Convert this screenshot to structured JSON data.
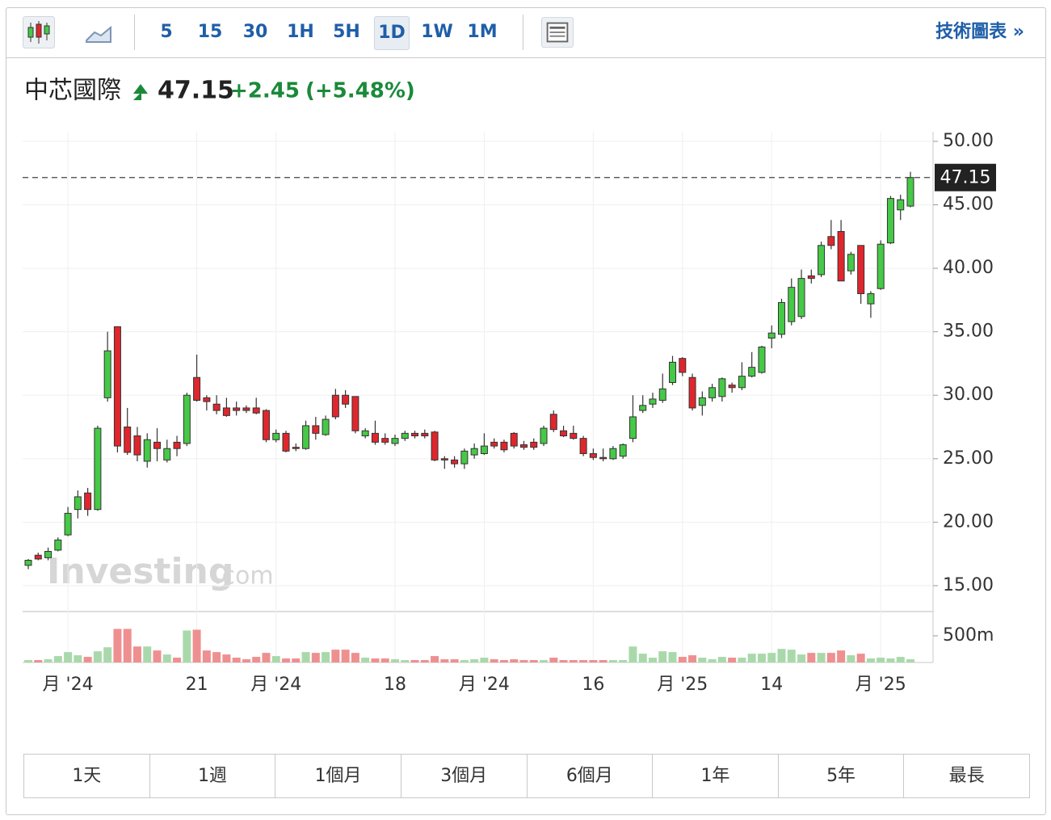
{
  "toolbar": {
    "intervals": [
      "5",
      "15",
      "30",
      "1H",
      "5H",
      "1D",
      "1W",
      "1M"
    ],
    "link": "技術圖表 »"
  },
  "chart_data": {
    "type": "candlestick",
    "title": "中芯國際",
    "last": 47.15,
    "change": {
      "value": 2.45,
      "label": "+2.45"
    },
    "change_percent": {
      "value": 5.48,
      "label": "(+5.48%)"
    },
    "watermark": [
      "Investing",
      ".com"
    ],
    "up_color": "#46c946",
    "down_color": "#e0262d",
    "volume_up_color": "#a9d9ab",
    "volume_down_color": "#ee9090",
    "categories": [
      null,
      null,
      null,
      null,
      "月 '24",
      null,
      null,
      null,
      null,
      null,
      null,
      null,
      null,
      null,
      null,
      null,
      null,
      "21",
      null,
      null,
      null,
      null,
      null,
      null,
      null,
      "月 '24",
      null,
      null,
      null,
      null,
      null,
      null,
      null,
      null,
      null,
      null,
      null,
      "18",
      null,
      null,
      null,
      null,
      null,
      null,
      null,
      null,
      "月 '24",
      null,
      null,
      null,
      null,
      null,
      null,
      null,
      null,
      null,
      null,
      "16",
      null,
      null,
      null,
      null,
      null,
      null,
      null,
      null,
      "月 '25",
      null,
      null,
      null,
      null,
      null,
      null,
      null,
      null,
      "14",
      null,
      null,
      null,
      null,
      null,
      null,
      null,
      null,
      null,
      null,
      "月 '25",
      null,
      null,
      null
    ],
    "open": [
      16.6,
      17.4,
      17.2,
      17.8,
      19.0,
      21.0,
      22.3,
      21.0,
      29.8,
      35.4,
      27.5,
      26.8,
      24.8,
      26.3,
      24.9,
      26.3,
      26.2,
      31.4,
      29.8,
      29.3,
      29.0,
      29.0,
      29.0,
      29.0,
      28.8,
      26.5,
      27.0,
      25.9,
      25.8,
      27.6,
      26.9,
      30.0,
      30.0,
      29.9,
      26.8,
      27.0,
      26.6,
      26.2,
      26.6,
      27.0,
      27.0,
      27.1,
      25.0,
      24.9,
      24.6,
      25.3,
      25.4,
      26.3,
      26.3,
      27.0,
      26.1,
      26.3,
      26.2,
      28.5,
      27.2,
      27.0,
      26.6,
      25.4,
      25.1,
      25.0,
      25.2,
      26.6,
      28.8,
      29.3,
      29.6,
      31.0,
      32.9,
      31.4,
      29.2,
      29.8,
      29.9,
      30.8,
      30.6,
      31.5,
      31.8,
      34.5,
      34.8,
      35.8,
      36.2,
      39.4,
      39.5,
      42.5,
      42.9,
      39.8,
      41.8,
      37.2,
      38.4,
      42.0,
      44.6,
      44.9
    ],
    "high": [
      17.1,
      17.6,
      18.0,
      18.8,
      21.2,
      22.5,
      22.7,
      27.6,
      35.0,
      35.4,
      29.0,
      27.5,
      27.0,
      27.4,
      26.5,
      26.8,
      30.2,
      33.2,
      30.0,
      30.0,
      29.8,
      29.5,
      29.2,
      29.8,
      28.9,
      27.3,
      27.2,
      26.2,
      28.0,
      28.3,
      28.4,
      30.5,
      30.4,
      29.9,
      27.4,
      28.0,
      27.0,
      26.9,
      27.2,
      27.2,
      27.3,
      27.2,
      25.2,
      25.2,
      25.8,
      26.2,
      27.0,
      26.6,
      26.5,
      27.1,
      26.4,
      26.6,
      27.6,
      28.8,
      27.6,
      27.6,
      26.8,
      25.8,
      25.8,
      26.0,
      26.2,
      30.0,
      30.0,
      30.2,
      31.7,
      33.1,
      33.0,
      31.7,
      30.3,
      30.9,
      31.4,
      31.0,
      32.6,
      33.4,
      33.9,
      35.5,
      37.6,
      39.2,
      39.9,
      39.9,
      42.1,
      43.8,
      43.8,
      41.3,
      41.8,
      38.2,
      42.2,
      45.7,
      45.8,
      47.6
    ],
    "low": [
      16.3,
      17.0,
      17.0,
      17.7,
      18.9,
      20.3,
      20.5,
      20.9,
      29.5,
      25.5,
      25.3,
      24.8,
      24.3,
      24.8,
      24.7,
      25.2,
      26.0,
      29.5,
      28.8,
      28.5,
      28.3,
      28.4,
      28.6,
      28.5,
      26.3,
      26.3,
      25.5,
      25.6,
      25.7,
      26.5,
      26.8,
      28.1,
      29.0,
      27.0,
      26.6,
      26.1,
      26.1,
      26.0,
      26.4,
      26.6,
      26.6,
      24.8,
      24.2,
      24.3,
      24.2,
      25.0,
      25.3,
      25.8,
      25.5,
      25.8,
      25.7,
      25.7,
      26.0,
      27.1,
      26.7,
      26.5,
      25.2,
      24.9,
      24.8,
      24.9,
      25.0,
      26.3,
      28.6,
      29.0,
      29.4,
      30.8,
      31.5,
      28.8,
      28.4,
      29.5,
      29.5,
      30.2,
      30.4,
      31.4,
      31.7,
      33.7,
      34.5,
      35.5,
      36.0,
      38.8,
      39.3,
      41.5,
      39.0,
      39.5,
      37.2,
      36.1,
      38.3,
      41.9,
      43.8,
      44.8
    ],
    "close": [
      17.0,
      17.1,
      17.7,
      18.6,
      20.7,
      22.0,
      21.0,
      27.4,
      33.5,
      26.0,
      25.5,
      25.3,
      26.5,
      25.8,
      25.8,
      25.8,
      30.0,
      29.6,
      29.5,
      28.8,
      28.4,
      28.8,
      28.8,
      28.6,
      26.5,
      27.0,
      25.6,
      25.8,
      27.6,
      27.0,
      28.1,
      28.3,
      29.3,
      27.2,
      27.2,
      26.3,
      26.3,
      26.6,
      27.0,
      26.8,
      26.8,
      24.9,
      24.9,
      24.6,
      25.6,
      25.8,
      26.0,
      26.0,
      25.7,
      26.0,
      25.9,
      25.9,
      27.4,
      27.3,
      26.8,
      26.6,
      25.4,
      25.1,
      25.0,
      25.8,
      26.1,
      28.3,
      29.2,
      29.7,
      30.5,
      32.6,
      31.8,
      29.0,
      29.8,
      30.6,
      31.3,
      30.6,
      31.5,
      32.2,
      33.8,
      34.9,
      37.3,
      38.5,
      39.2,
      39.2,
      41.8,
      41.8,
      39.0,
      41.1,
      38.0,
      38.0,
      41.9,
      45.5,
      45.4,
      47.15
    ],
    "volume": [
      45,
      45,
      60,
      120,
      195,
      135,
      105,
      210,
      285,
      630,
      630,
      300,
      300,
      225,
      150,
      90,
      600,
      615,
      225,
      195,
      150,
      90,
      60,
      105,
      180,
      120,
      75,
      75,
      195,
      180,
      195,
      240,
      240,
      180,
      90,
      75,
      75,
      60,
      45,
      45,
      45,
      120,
      60,
      60,
      45,
      60,
      90,
      60,
      45,
      60,
      45,
      45,
      45,
      90,
      45,
      45,
      45,
      45,
      45,
      45,
      45,
      300,
      165,
      90,
      210,
      195,
      105,
      135,
      90,
      60,
      105,
      90,
      90,
      165,
      165,
      180,
      255,
      240,
      150,
      180,
      180,
      180,
      225,
      135,
      165,
      75,
      90,
      75,
      105,
      60
    ],
    "ylim": [
      12.96,
      50.76
    ],
    "yticks": [
      {
        "value": 15,
        "label": "15.00"
      },
      {
        "value": 20,
        "label": "20.00"
      },
      {
        "value": 25,
        "label": "25.00"
      },
      {
        "value": 30,
        "label": "30.00"
      },
      {
        "value": 35,
        "label": "35.00"
      },
      {
        "value": 40,
        "label": "40.00"
      },
      {
        "value": 45,
        "label": "45.00"
      },
      {
        "value": 50,
        "label": "50.00"
      }
    ],
    "volume_ylim": [
      0,
      955
    ],
    "volume_yticks": [
      {
        "value": 500,
        "label": "500m"
      }
    ],
    "grid": true
  },
  "range_buttons": [
    "1天",
    "1週",
    "1個月",
    "3個月",
    "6個月",
    "1年",
    "5年",
    "最長"
  ]
}
